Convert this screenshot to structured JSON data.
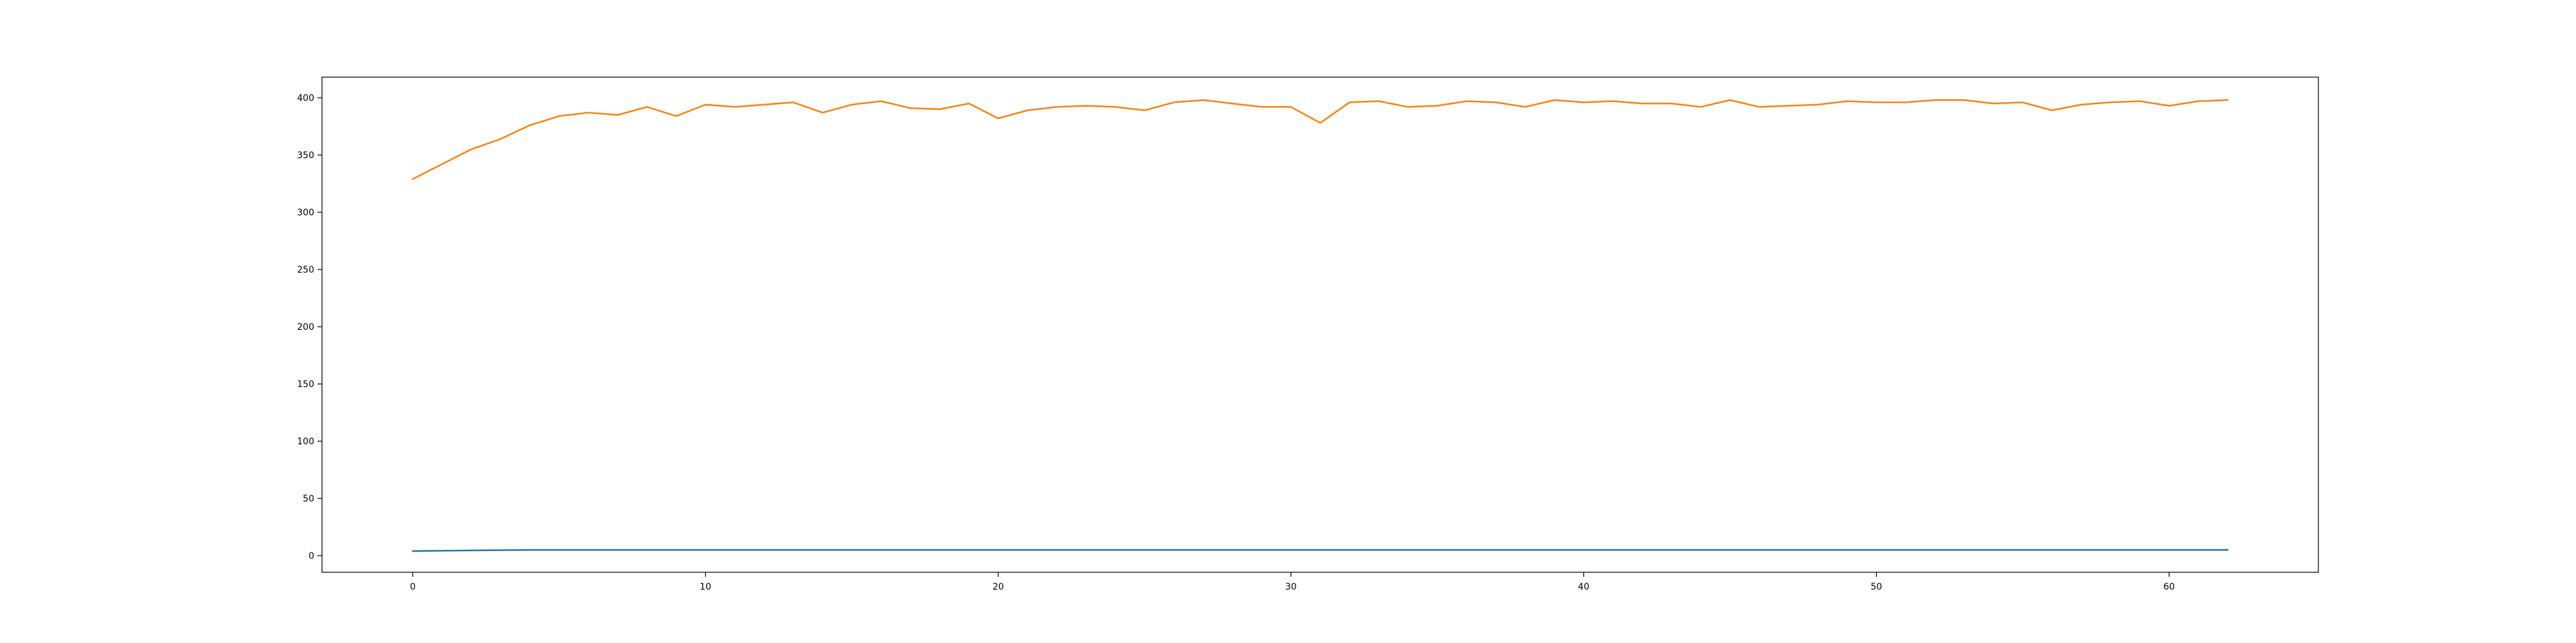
{
  "chart_data": {
    "type": "line",
    "title": "",
    "xlabel": "",
    "ylabel": "",
    "xlim": [
      -3.1,
      65.1
    ],
    "ylim": [
      -14.5,
      418
    ],
    "x_ticks": [
      0,
      10,
      20,
      30,
      40,
      50,
      60
    ],
    "y_ticks": [
      0,
      50,
      100,
      150,
      200,
      250,
      300,
      350,
      400
    ],
    "grid": false,
    "legend": "none",
    "x": [
      0,
      1,
      2,
      3,
      4,
      5,
      6,
      7,
      8,
      9,
      10,
      11,
      12,
      13,
      14,
      15,
      16,
      17,
      18,
      19,
      20,
      21,
      22,
      23,
      24,
      25,
      26,
      27,
      28,
      29,
      30,
      31,
      32,
      33,
      34,
      35,
      36,
      37,
      38,
      39,
      40,
      41,
      42,
      43,
      44,
      45,
      46,
      47,
      48,
      49,
      50,
      51,
      52,
      53,
      54,
      55,
      56,
      57,
      58,
      59,
      60,
      61,
      62
    ],
    "series": [
      {
        "color": "#1f77b4",
        "values": [
          4,
          4.3,
          4.6,
          4.8,
          5,
          5,
          5,
          5,
          5,
          5,
          5,
          5,
          5,
          5,
          5,
          5,
          5,
          5,
          5,
          5,
          5,
          5,
          5,
          5,
          5,
          5,
          5,
          5,
          5,
          5,
          5,
          5,
          5,
          5,
          5,
          5,
          5,
          5,
          5,
          5,
          5,
          5,
          5,
          5,
          5,
          5,
          5,
          5,
          5,
          5,
          5,
          5,
          5,
          5,
          5,
          5,
          5,
          5,
          5,
          5,
          5,
          5,
          5
        ]
      },
      {
        "color": "#ff7f0e",
        "values": [
          329,
          342,
          355,
          364,
          376,
          384,
          387,
          385,
          392,
          384,
          394,
          392,
          394,
          396,
          387,
          394,
          397,
          391,
          390,
          395,
          382,
          389,
          392,
          393,
          392,
          389,
          396,
          398,
          395,
          392,
          392,
          378,
          396,
          397,
          392,
          393,
          397,
          396,
          392,
          398,
          396,
          397,
          395,
          395,
          392,
          398,
          392,
          393,
          394,
          397,
          396,
          396,
          398,
          398,
          395,
          396,
          389,
          394,
          396,
          397,
          393,
          397,
          398
        ]
      }
    ]
  }
}
